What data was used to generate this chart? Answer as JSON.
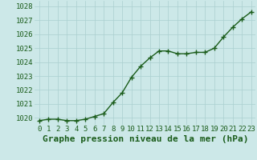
{
  "x": [
    0,
    1,
    2,
    3,
    4,
    5,
    6,
    7,
    8,
    9,
    10,
    11,
    12,
    13,
    14,
    15,
    16,
    17,
    18,
    19,
    20,
    21,
    22,
    23
  ],
  "y": [
    1019.8,
    1019.9,
    1019.9,
    1019.8,
    1019.8,
    1019.9,
    1020.1,
    1020.3,
    1021.1,
    1021.8,
    1022.9,
    1023.7,
    1024.3,
    1024.8,
    1024.8,
    1024.6,
    1024.6,
    1024.7,
    1024.7,
    1025.0,
    1025.8,
    1026.5,
    1027.1,
    1027.6
  ],
  "line_color": "#1a5c1a",
  "marker": "+",
  "marker_size": 4,
  "marker_edge_width": 1.0,
  "bg_color": "#cce8e8",
  "grid_color": "#aacfcf",
  "xlabel": "Graphe pression niveau de la mer (hPa)",
  "xlabel_fontsize": 8,
  "ylim": [
    1019.5,
    1028.4
  ],
  "xlim": [
    -0.5,
    23.5
  ],
  "yticks": [
    1020,
    1021,
    1022,
    1023,
    1024,
    1025,
    1026,
    1027,
    1028
  ],
  "xticks": [
    0,
    1,
    2,
    3,
    4,
    5,
    6,
    7,
    8,
    9,
    10,
    11,
    12,
    13,
    14,
    15,
    16,
    17,
    18,
    19,
    20,
    21,
    22,
    23
  ],
  "tick_fontsize": 6.5,
  "tick_color": "#1a5c1a",
  "label_color": "#1a5c1a",
  "line_width": 1.0
}
